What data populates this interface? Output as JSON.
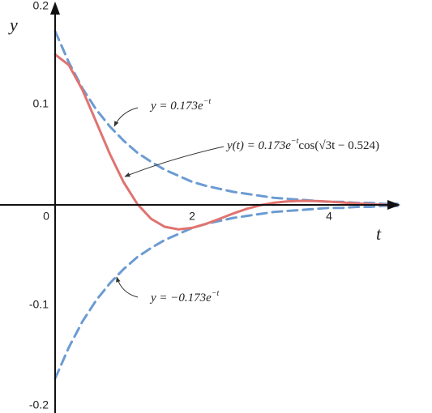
{
  "chart_data": {
    "type": "line",
    "x": [
      0,
      0.2,
      0.4,
      0.6,
      0.8,
      1,
      1.2,
      1.4,
      1.6,
      1.8,
      2,
      2.2,
      2.4,
      2.6,
      2.8,
      3,
      3.2,
      3.4,
      3.6,
      3.8,
      4,
      4.2,
      4.4,
      4.6,
      4.8,
      5
    ],
    "series": [
      {
        "color": "#6b9bd2",
        "dashed": true,
        "values": [
          0.173,
          0.142,
          0.116,
          0.095,
          0.078,
          0.064,
          0.052,
          0.043,
          0.035,
          0.029,
          0.023,
          0.019,
          0.016,
          0.013,
          0.011,
          0.009,
          0.007,
          0.006,
          0.005,
          0.004,
          0.003,
          0.003,
          0.002,
          0.002,
          0.001,
          0.001
        ]
      },
      {
        "color": "#6b9bd2",
        "dashed": true,
        "values": [
          -0.173,
          -0.142,
          -0.116,
          -0.095,
          -0.078,
          -0.064,
          -0.052,
          -0.043,
          -0.035,
          -0.029,
          -0.023,
          -0.019,
          -0.016,
          -0.013,
          -0.011,
          -0.009,
          -0.007,
          -0.006,
          -0.005,
          -0.004,
          -0.003,
          -0.003,
          -0.002,
          -0.002,
          -0.001,
          -0.001
        ]
      },
      {
        "color": "#e07370",
        "dashed": false,
        "values": [
          0.1498,
          0.1393,
          0.1144,
          0.0826,
          0.0506,
          0.0226,
          0.0009,
          -0.0138,
          -0.0218,
          -0.0244,
          -0.0229,
          -0.019,
          -0.0139,
          -0.0086,
          -0.0039,
          -0.0003,
          0.0021,
          0.0035,
          0.004,
          0.0038,
          0.0032,
          0.0023,
          0.0015,
          0.0007,
          0.0001,
          -0.0003
        ]
      }
    ],
    "xlim": [
      -0.8,
      5
    ],
    "ylim": [
      -0.2,
      0.2
    ],
    "xticks": [
      0,
      2,
      4
    ],
    "yticks": [
      -0.2,
      -0.1,
      0.1,
      0.2
    ],
    "x_label": "t",
    "y_label": "y",
    "annotations": [
      {
        "text": "y = 0.173e",
        "sup": "−t"
      },
      {
        "text": "y(t) = 0.173e",
        "sup": "−t",
        "rest": "cos(√3t − 0.524)"
      },
      {
        "text": "y = −0.173e",
        "sup": "−t"
      }
    ]
  }
}
